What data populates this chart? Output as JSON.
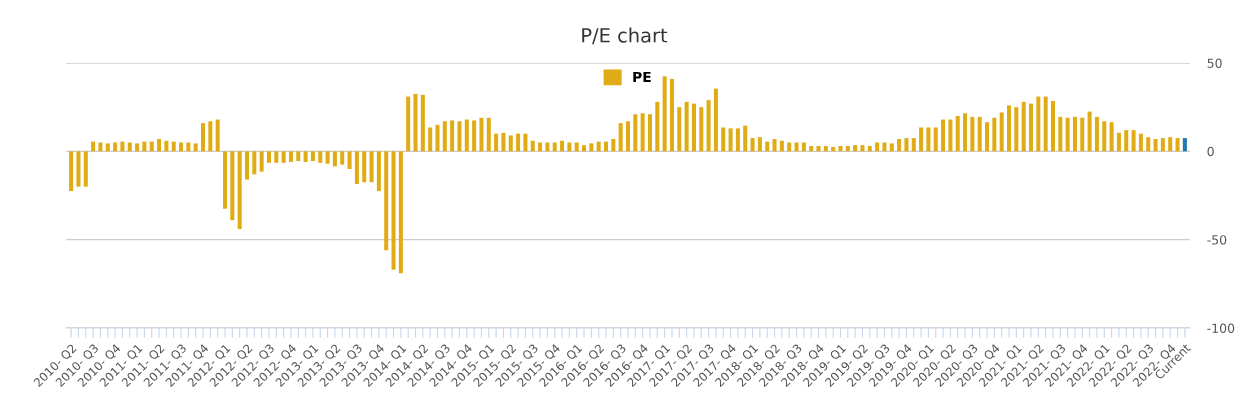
{
  "chart_data": {
    "type": "bar",
    "title": "P/E chart",
    "categories": [
      "2010- Q2",
      null,
      null,
      "2010- Q3",
      null,
      null,
      "2010- Q4",
      null,
      null,
      "2011- Q1",
      null,
      null,
      "2011- Q2",
      null,
      null,
      "2011- Q3",
      null,
      null,
      "2011- Q4",
      null,
      null,
      "2012- Q1",
      null,
      null,
      "2012- Q2",
      null,
      null,
      "2012- Q3",
      null,
      null,
      "2012- Q4",
      null,
      null,
      "2013- Q1",
      null,
      null,
      "2013- Q2",
      null,
      null,
      "2013- Q3",
      null,
      null,
      "2013- Q4",
      null,
      null,
      "2014- Q1",
      null,
      null,
      "2014- Q2",
      null,
      null,
      "2014- Q3",
      null,
      null,
      "2014- Q4",
      null,
      null,
      "2015- Q1",
      null,
      null,
      "2015- Q2",
      null,
      null,
      "2015- Q3",
      null,
      null,
      "2015- Q4",
      null,
      null,
      "2016- Q1",
      null,
      null,
      "2016- Q2",
      null,
      null,
      "2016- Q3",
      null,
      null,
      "2016- Q4",
      null,
      null,
      "2017- Q1",
      null,
      null,
      "2017- Q2",
      null,
      null,
      "2017- Q3",
      null,
      null,
      "2017- Q4",
      null,
      null,
      "2018- Q1",
      null,
      null,
      "2018- Q2",
      null,
      null,
      "2018- Q3",
      null,
      null,
      "2018- Q4",
      null,
      null,
      "2019- Q1",
      null,
      null,
      "2019- Q2",
      null,
      null,
      "2019- Q3",
      null,
      null,
      "2019- Q4",
      null,
      null,
      "2020- Q1",
      null,
      null,
      "2020- Q2",
      null,
      null,
      "2020- Q3",
      null,
      null,
      "2020- Q4",
      null,
      null,
      "2021- Q1",
      null,
      null,
      "2021- Q2",
      null,
      null,
      "2021- Q3",
      null,
      null,
      "2021- Q4",
      null,
      null,
      "2022- Q1",
      null,
      null,
      "2022- Q2",
      null,
      null,
      "2022- Q3",
      null,
      null,
      "2022- Q4",
      null,
      "Current"
    ],
    "series": [
      {
        "name": "PE",
        "color": "#e0ab14",
        "values": [
          -22.5,
          -20,
          -20,
          5.5,
          5,
          4.5,
          5,
          5.5,
          5,
          4.5,
          5.5,
          5.5,
          7,
          6,
          5.5,
          5,
          5,
          4.5,
          16,
          17,
          18,
          -32.5,
          -39,
          -44,
          -16,
          -13,
          -11.5,
          -6.5,
          -6.5,
          -6.5,
          -6,
          -5.5,
          -6,
          -5.5,
          -6.5,
          -7,
          -8.5,
          -7.5,
          -10,
          -18.5,
          -17.5,
          -17.5,
          -22.5,
          -56,
          -67,
          -69,
          31,
          32.5,
          32,
          13.5,
          15,
          17,
          17.5,
          17,
          18,
          17.5,
          19,
          19,
          10,
          10.5,
          9,
          10,
          10,
          6,
          5,
          5,
          5,
          6,
          5,
          5,
          3.5,
          4.5,
          5.5,
          5.5,
          7,
          16,
          17,
          21,
          21.5,
          21,
          28,
          42.5,
          41,
          25,
          28,
          27,
          25,
          29,
          35.5,
          13.5,
          13,
          13,
          14.5,
          7.5,
          8,
          5.5,
          7,
          6,
          5,
          5,
          5,
          3,
          3,
          3,
          2.5,
          3,
          3,
          3.5,
          3.5,
          3,
          5,
          5,
          4.5,
          7,
          7.5,
          7.5,
          13.5,
          13.5,
          13.5,
          18,
          18,
          20,
          21.5,
          19.5,
          19.5,
          16.5,
          19,
          22,
          26,
          25,
          28,
          27,
          31,
          31,
          28.5,
          19.5,
          19,
          19.5,
          19,
          22.5,
          19.5,
          17,
          16.5,
          10.5,
          12,
          12,
          10,
          8,
          7,
          7.5,
          8,
          7.5,
          7.5
        ],
        "colors": [
          "#e0ab14",
          "#e0ab14",
          "#e0ab14",
          "#e0ab14",
          "#e0ab14",
          "#e0ab14",
          "#e0ab14",
          "#e0ab14",
          "#e0ab14",
          "#e0ab14",
          "#e0ab14",
          "#e0ab14",
          "#e0ab14",
          "#e0ab14",
          "#e0ab14",
          "#e0ab14",
          "#e0ab14",
          "#e0ab14",
          "#e0ab14",
          "#e0ab14",
          "#e0ab14",
          "#e0ab14",
          "#e0ab14",
          "#e0ab14",
          "#e0ab14",
          "#e0ab14",
          "#e0ab14",
          "#e0ab14",
          "#e0ab14",
          "#e0ab14",
          "#e0ab14",
          "#e0ab14",
          "#e0ab14",
          "#e0ab14",
          "#e0ab14",
          "#e0ab14",
          "#e0ab14",
          "#e0ab14",
          "#e0ab14",
          "#e0ab14",
          "#e0ab14",
          "#e0ab14",
          "#e0ab14",
          "#e0ab14",
          "#e0ab14",
          "#e0ab14",
          "#e0ab14",
          "#e0ab14",
          "#e0ab14",
          "#e0ab14",
          "#e0ab14",
          "#e0ab14",
          "#e0ab14",
          "#e0ab14",
          "#e0ab14",
          "#e0ab14",
          "#e0ab14",
          "#e0ab14",
          "#e0ab14",
          "#e0ab14",
          "#e0ab14",
          "#e0ab14",
          "#e0ab14",
          "#e0ab14",
          "#e0ab14",
          "#e0ab14",
          "#e0ab14",
          "#e0ab14",
          "#e0ab14",
          "#e0ab14",
          "#e0ab14",
          "#e0ab14",
          "#e0ab14",
          "#e0ab14",
          "#e0ab14",
          "#e0ab14",
          "#e0ab14",
          "#e0ab14",
          "#e0ab14",
          "#e0ab14",
          "#e0ab14",
          "#e0ab14",
          "#e0ab14",
          "#e0ab14",
          "#e0ab14",
          "#e0ab14",
          "#e0ab14",
          "#e0ab14",
          "#e0ab14",
          "#e0ab14",
          "#e0ab14",
          "#e0ab14",
          "#e0ab14",
          "#e0ab14",
          "#e0ab14",
          "#e0ab14",
          "#e0ab14",
          "#e0ab14",
          "#e0ab14",
          "#e0ab14",
          "#e0ab14",
          "#e0ab14",
          "#e0ab14",
          "#e0ab14",
          "#e0ab14",
          "#e0ab14",
          "#e0ab14",
          "#e0ab14",
          "#e0ab14",
          "#e0ab14",
          "#e0ab14",
          "#e0ab14",
          "#e0ab14",
          "#e0ab14",
          "#e0ab14",
          "#e0ab14",
          "#e0ab14",
          "#e0ab14",
          "#e0ab14",
          "#e0ab14",
          "#e0ab14",
          "#e0ab14",
          "#e0ab14",
          "#e0ab14",
          "#e0ab14",
          "#e0ab14",
          "#e0ab14",
          "#e0ab14",
          "#e0ab14",
          "#e0ab14",
          "#e0ab14",
          "#e0ab14",
          "#e0ab14",
          "#e0ab14",
          "#e0ab14",
          "#e0ab14",
          "#e0ab14",
          "#e0ab14",
          "#e0ab14",
          "#e0ab14",
          "#e0ab14",
          "#e0ab14",
          "#e0ab14",
          "#e0ab14",
          "#e0ab14",
          "#e0ab14",
          "#e0ab14",
          "#e0ab14",
          "#e0ab14",
          "#e0ab14",
          "#e0ab14",
          "#e0ab14",
          "#1f77b4"
        ]
      }
    ],
    "ylim": [
      -100,
      50
    ],
    "yticks": [
      50,
      0,
      -50,
      -100
    ],
    "grid": "y",
    "legend": "top"
  }
}
